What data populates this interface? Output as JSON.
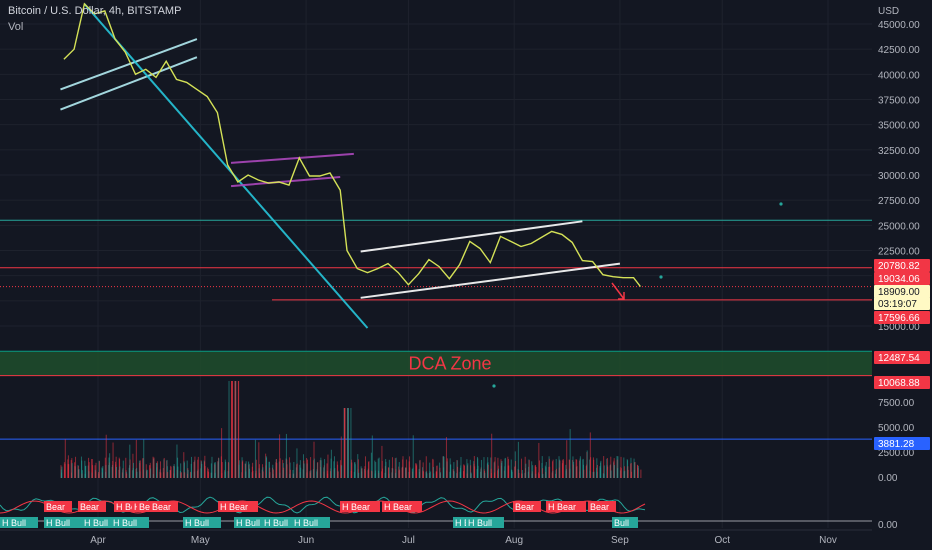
{
  "header": {
    "symbol_line": "Bitcoin / U.S. Dollar, 4h, BITSTAMP",
    "vol_label": "Vol"
  },
  "chart_data": {
    "type": "line",
    "title": "Bitcoin / U.S. Dollar, 4h, BITSTAMP",
    "currency": "USD",
    "price_axis": {
      "ticks": [
        "45000.00",
        "42500.00",
        "40000.00",
        "37500.00",
        "35000.00",
        "32500.00",
        "30000.00",
        "27500.00",
        "25000.00",
        "22500.00",
        "20000.00",
        "17500.00",
        "15000.00"
      ],
      "range": [
        14000,
        47000
      ]
    },
    "volume_axis": {
      "ticks": [
        "7500.00",
        "5000.00",
        "2500.00",
        "0.00"
      ]
    },
    "oscillator_axis": {
      "ticks": [
        "0.00"
      ]
    },
    "x_axis": {
      "ticks": [
        "Apr",
        "May",
        "Jun",
        "Jul",
        "Aug",
        "Sep",
        "Oct",
        "Nov"
      ]
    },
    "price_series": {
      "name": "BTCUSD",
      "x": [
        "2022-03-22",
        "2022-03-25",
        "2022-03-28",
        "2022-03-31",
        "2022-04-03",
        "2022-04-06",
        "2022-04-09",
        "2022-04-12",
        "2022-04-15",
        "2022-04-18",
        "2022-04-21",
        "2022-04-24",
        "2022-04-27",
        "2022-04-30",
        "2022-05-03",
        "2022-05-06",
        "2022-05-09",
        "2022-05-12",
        "2022-05-15",
        "2022-05-18",
        "2022-05-21",
        "2022-05-24",
        "2022-05-27",
        "2022-05-30",
        "2022-06-02",
        "2022-06-05",
        "2022-06-08",
        "2022-06-11",
        "2022-06-13",
        "2022-06-16",
        "2022-06-19",
        "2022-06-22",
        "2022-06-25",
        "2022-06-28",
        "2022-07-01",
        "2022-07-04",
        "2022-07-07",
        "2022-07-10",
        "2022-07-13",
        "2022-07-16",
        "2022-07-19",
        "2022-07-22",
        "2022-07-25",
        "2022-07-28",
        "2022-07-31",
        "2022-08-03",
        "2022-08-06",
        "2022-08-09",
        "2022-08-12",
        "2022-08-15",
        "2022-08-18",
        "2022-08-21",
        "2022-08-24",
        "2022-08-27",
        "2022-08-30",
        "2022-09-02",
        "2022-09-05",
        "2022-09-07"
      ],
      "y": [
        41500,
        42500,
        47000,
        46000,
        46300,
        43500,
        42200,
        40000,
        40500,
        39700,
        41300,
        39500,
        39200,
        38500,
        37800,
        36200,
        31000,
        29300,
        30000,
        29500,
        29200,
        29300,
        29000,
        31700,
        29900,
        29900,
        30200,
        28500,
        22500,
        20700,
        20300,
        20700,
        21200,
        20300,
        19100,
        20200,
        21600,
        20900,
        19700,
        21100,
        23400,
        22700,
        21300,
        23900,
        23400,
        22900,
        23200,
        23800,
        24400,
        24100,
        23300,
        21500,
        21400,
        20100,
        19900,
        19800,
        19800,
        18909
      ]
    },
    "price_lines": [
      {
        "price": 25500,
        "style": "solid",
        "color": "#26a69a"
      },
      {
        "price": 20780.82,
        "style": "solid",
        "color": "#f23645"
      },
      {
        "price": 18909.0,
        "style": "dotted",
        "color": "#f23645"
      },
      {
        "price": 17596.66,
        "style": "solid",
        "color": "#f23645"
      },
      {
        "price": 12487.54,
        "style": "solid",
        "color": "#089981"
      },
      {
        "price": 10068.88,
        "style": "solid",
        "color": "#f23645"
      }
    ],
    "trendlines": [
      {
        "kind": "channel",
        "color": "#b2ebf2",
        "from": [
          "2022-03-21",
          38500
        ],
        "to": [
          "2022-04-30",
          43500
        ]
      },
      {
        "kind": "channel",
        "color": "#b2ebf2",
        "from": [
          "2022-03-21",
          36500
        ],
        "to": [
          "2022-04-30",
          41700
        ]
      },
      {
        "kind": "trend",
        "color": "#26c6da",
        "from": [
          "2022-03-28",
          47000
        ],
        "to": [
          "2022-06-19",
          14800
        ]
      },
      {
        "kind": "channel",
        "color": "#ab47bc",
        "from": [
          "2022-05-10",
          31200
        ],
        "to": [
          "2022-06-15",
          32100
        ]
      },
      {
        "kind": "channel",
        "color": "#ab47bc",
        "from": [
          "2022-05-10",
          28900
        ],
        "to": [
          "2022-06-11",
          29800
        ]
      },
      {
        "kind": "channel",
        "color": "#ffffff",
        "from": [
          "2022-06-17",
          22400
        ],
        "to": [
          "2022-08-21",
          25400
        ]
      },
      {
        "kind": "channel",
        "color": "#ffffff",
        "from": [
          "2022-06-17",
          17800
        ],
        "to": [
          "2022-09-01",
          21200
        ]
      }
    ],
    "zones": [
      {
        "label": "DCA Zone",
        "from_price": 10068.88,
        "to_price": 12487.54,
        "color": "#1e4d2b"
      }
    ],
    "price_labels": [
      {
        "text": "20780.82",
        "kind": "level",
        "bg": "#f23645",
        "fg": "#ffffff"
      },
      {
        "text": "19034.06",
        "kind": "level",
        "bg": "#f23645",
        "fg": "#ffffff"
      },
      {
        "text": "18909.00",
        "kind": "last",
        "bg": "#fff9c4",
        "fg": "#131722"
      },
      {
        "text": "03:19:07",
        "kind": "countdown",
        "bg": "#fff9c4",
        "fg": "#131722"
      },
      {
        "text": "17596.66",
        "kind": "level",
        "bg": "#f23645",
        "fg": "#ffffff"
      },
      {
        "text": "12487.54",
        "kind": "level",
        "bg": "#f23645",
        "fg": "#ffffff"
      },
      {
        "text": "10068.88",
        "kind": "level",
        "bg": "#f23645",
        "fg": "#ffffff"
      },
      {
        "text": "3881.28",
        "kind": "volume",
        "bg": "#2962ff",
        "fg": "#ffffff"
      }
    ],
    "volume_line": {
      "value": 3881.28,
      "color": "#2962ff"
    },
    "volume_colors": {
      "up": "#26a69a",
      "down": "#f23645"
    },
    "signals": {
      "bear": [
        "Bear",
        "Bear",
        "H Bear",
        "H Bear",
        "Bear",
        "Bear",
        "H Bear",
        "H Bear",
        "H Bear",
        "Bear",
        "H Bear",
        "Bear"
      ],
      "bull": [
        "H Bull",
        "H Bull",
        "H Bull",
        "H Bull",
        "H Bull",
        "H Bull",
        "H Bull",
        "H Bull",
        "H Bull",
        "H Bull",
        "Bull"
      ]
    },
    "grid": true,
    "colors": {
      "background": "#131722",
      "grid": "#1e222d",
      "axis_text": "#b2b5be",
      "price_line": "#d4e157"
    }
  }
}
